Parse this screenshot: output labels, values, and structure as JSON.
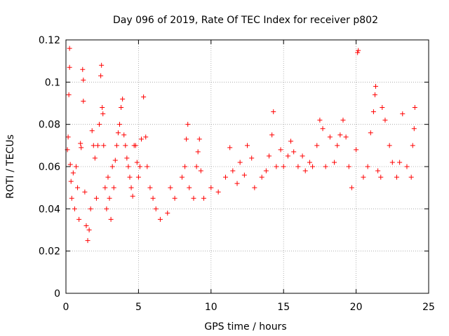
{
  "chart_data": {
    "type": "scatter",
    "title": "Day 096 of 2019, Rate Of TEC Index for receiver p802",
    "xlabel": "GPS time / hours",
    "ylabel": "ROTI / TECUs",
    "xlim": [
      0,
      25
    ],
    "ylim": [
      0,
      0.12
    ],
    "xticks": [
      0,
      5,
      10,
      15,
      20,
      25
    ],
    "xtick_labels": [
      "0",
      "5",
      "10",
      "15",
      "20",
      "25"
    ],
    "yticks": [
      0,
      0.02,
      0.04,
      0.06,
      0.08,
      0.1,
      0.12
    ],
    "ytick_labels": [
      "0",
      "0.02",
      "0.04",
      "0.06",
      "0.08",
      "0.1",
      "0.12"
    ],
    "grid": true,
    "legend": "none",
    "marker": "plus",
    "series_color": "#ff0000",
    "series": [
      {
        "name": "ROTI",
        "points": [
          [
            0.1,
            0.068
          ],
          [
            0.15,
            0.074
          ],
          [
            0.2,
            0.094
          ],
          [
            0.25,
            0.107
          ],
          [
            0.25,
            0.116
          ],
          [
            0.3,
            0.061
          ],
          [
            0.35,
            0.053
          ],
          [
            0.4,
            0.045
          ],
          [
            0.5,
            0.057
          ],
          [
            0.6,
            0.04
          ],
          [
            0.7,
            0.06
          ],
          [
            0.8,
            0.05
          ],
          [
            0.9,
            0.035
          ],
          [
            1.0,
            0.071
          ],
          [
            1.05,
            0.069
          ],
          [
            1.15,
            0.106
          ],
          [
            1.2,
            0.101
          ],
          [
            1.2,
            0.091
          ],
          [
            1.3,
            0.048
          ],
          [
            1.4,
            0.032
          ],
          [
            1.5,
            0.025
          ],
          [
            1.6,
            0.03
          ],
          [
            1.7,
            0.04
          ],
          [
            1.8,
            0.077
          ],
          [
            1.9,
            0.07
          ],
          [
            2.0,
            0.064
          ],
          [
            2.1,
            0.045
          ],
          [
            2.2,
            0.07
          ],
          [
            2.3,
            0.08
          ],
          [
            2.4,
            0.103
          ],
          [
            2.45,
            0.108
          ],
          [
            2.5,
            0.088
          ],
          [
            2.55,
            0.085
          ],
          [
            2.6,
            0.07
          ],
          [
            2.7,
            0.05
          ],
          [
            2.8,
            0.04
          ],
          [
            2.9,
            0.055
          ],
          [
            3.0,
            0.045
          ],
          [
            3.1,
            0.035
          ],
          [
            3.2,
            0.06
          ],
          [
            3.3,
            0.05
          ],
          [
            3.4,
            0.063
          ],
          [
            3.5,
            0.07
          ],
          [
            3.6,
            0.076
          ],
          [
            3.7,
            0.08
          ],
          [
            3.8,
            0.088
          ],
          [
            3.9,
            0.092
          ],
          [
            4.0,
            0.075
          ],
          [
            4.1,
            0.07
          ],
          [
            4.2,
            0.064
          ],
          [
            4.3,
            0.06
          ],
          [
            4.4,
            0.055
          ],
          [
            4.5,
            0.05
          ],
          [
            4.6,
            0.046
          ],
          [
            4.7,
            0.07
          ],
          [
            4.8,
            0.07
          ],
          [
            4.9,
            0.062
          ],
          [
            5.0,
            0.055
          ],
          [
            5.1,
            0.06
          ],
          [
            5.2,
            0.073
          ],
          [
            5.35,
            0.093
          ],
          [
            5.5,
            0.074
          ],
          [
            5.6,
            0.06
          ],
          [
            5.8,
            0.05
          ],
          [
            6.0,
            0.045
          ],
          [
            6.2,
            0.04
          ],
          [
            6.5,
            0.035
          ],
          [
            7.0,
            0.038
          ],
          [
            7.2,
            0.05
          ],
          [
            7.5,
            0.045
          ],
          [
            8.0,
            0.055
          ],
          [
            8.2,
            0.06
          ],
          [
            8.3,
            0.073
          ],
          [
            8.4,
            0.08
          ],
          [
            8.5,
            0.05
          ],
          [
            8.8,
            0.045
          ],
          [
            9.0,
            0.06
          ],
          [
            9.1,
            0.067
          ],
          [
            9.2,
            0.073
          ],
          [
            9.3,
            0.058
          ],
          [
            9.5,
            0.045
          ],
          [
            10.0,
            0.05
          ],
          [
            10.5,
            0.048
          ],
          [
            11.0,
            0.055
          ],
          [
            11.3,
            0.069
          ],
          [
            11.5,
            0.058
          ],
          [
            11.8,
            0.052
          ],
          [
            12.0,
            0.062
          ],
          [
            12.3,
            0.056
          ],
          [
            12.5,
            0.07
          ],
          [
            12.8,
            0.064
          ],
          [
            13.0,
            0.05
          ],
          [
            13.5,
            0.055
          ],
          [
            13.8,
            0.058
          ],
          [
            14.0,
            0.065
          ],
          [
            14.2,
            0.075
          ],
          [
            14.3,
            0.086
          ],
          [
            14.5,
            0.06
          ],
          [
            14.8,
            0.068
          ],
          [
            15.0,
            0.06
          ],
          [
            15.3,
            0.065
          ],
          [
            15.5,
            0.072
          ],
          [
            15.7,
            0.067
          ],
          [
            16.0,
            0.06
          ],
          [
            16.3,
            0.065
          ],
          [
            16.5,
            0.058
          ],
          [
            16.8,
            0.062
          ],
          [
            17.0,
            0.06
          ],
          [
            17.3,
            0.07
          ],
          [
            17.5,
            0.082
          ],
          [
            17.7,
            0.078
          ],
          [
            17.9,
            0.06
          ],
          [
            18.2,
            0.074
          ],
          [
            18.5,
            0.062
          ],
          [
            18.7,
            0.07
          ],
          [
            18.9,
            0.075
          ],
          [
            19.1,
            0.082
          ],
          [
            19.3,
            0.074
          ],
          [
            19.5,
            0.06
          ],
          [
            19.7,
            0.05
          ],
          [
            20.0,
            0.068
          ],
          [
            20.1,
            0.114
          ],
          [
            20.15,
            0.115
          ],
          [
            20.5,
            0.055
          ],
          [
            20.8,
            0.06
          ],
          [
            21.0,
            0.076
          ],
          [
            21.2,
            0.086
          ],
          [
            21.3,
            0.094
          ],
          [
            21.35,
            0.098
          ],
          [
            21.5,
            0.058
          ],
          [
            21.7,
            0.055
          ],
          [
            21.8,
            0.088
          ],
          [
            22.0,
            0.082
          ],
          [
            22.3,
            0.07
          ],
          [
            22.5,
            0.062
          ],
          [
            22.8,
            0.055
          ],
          [
            23.0,
            0.062
          ],
          [
            23.2,
            0.085
          ],
          [
            23.5,
            0.06
          ],
          [
            23.8,
            0.055
          ],
          [
            23.9,
            0.07
          ],
          [
            24.0,
            0.078
          ],
          [
            24.05,
            0.088
          ]
        ]
      }
    ]
  }
}
